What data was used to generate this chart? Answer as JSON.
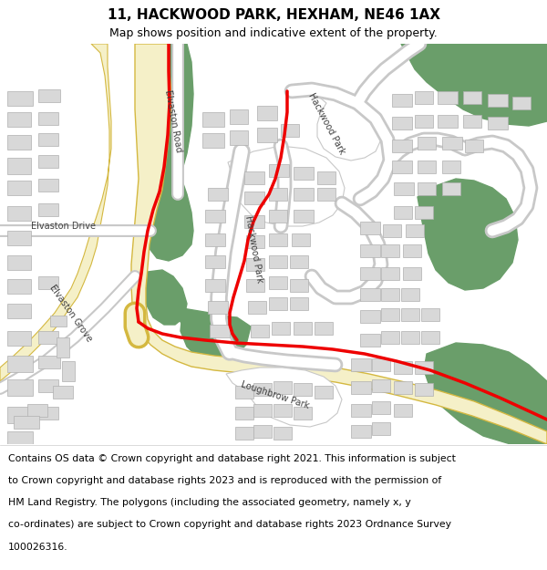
{
  "title": "11, HACKWOOD PARK, HEXHAM, NE46 1AX",
  "subtitle": "Map shows position and indicative extent of the property.",
  "road_major_fill": "#f5f0c8",
  "road_major_border": "#d4b840",
  "road_minor_fill": "#ffffff",
  "road_minor_border": "#c8c8c8",
  "green_color": "#6a9e6a",
  "building_fill": "#d8d8d8",
  "building_border": "#b0b0b0",
  "red_color": "#ee0000",
  "bg_color": "#ffffff",
  "title_fontsize": 11,
  "subtitle_fontsize": 9,
  "footer_fontsize": 7.8,
  "footer_lines": [
    "Contains OS data © Crown copyright and database right 2021. This information is subject",
    "to Crown copyright and database rights 2023 and is reproduced with the permission of",
    "HM Land Registry. The polygons (including the associated geometry, namely x, y",
    "co-ordinates) are subject to Crown copyright and database rights 2023 Ordnance Survey",
    "100026316."
  ]
}
